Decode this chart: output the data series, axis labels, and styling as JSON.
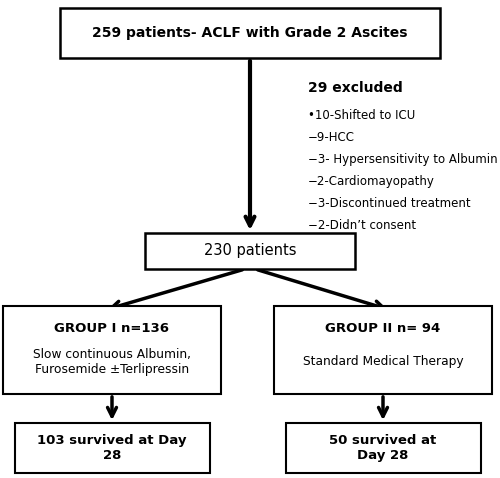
{
  "title": "259 patients- ACLF with Grade 2 Ascites",
  "excluded_title": "29 excluded",
  "excluded_items": [
    "•10-Shifted to ICU",
    "−9-HCC",
    "−3- Hypersensitivity to Albumin",
    "−2-Cardiomayopathy",
    "−3-Discontinued treatment",
    "−2-Didn’t consent"
  ],
  "box2_text": "230 patients",
  "group1_line1": "GROUP I n=136",
  "group1_line2": "Slow continuous Albumin,\nFurosemide ±Terlipressin",
  "group2_line1": "GROUP II n= 94",
  "group2_line2": "Standard Medical Therapy",
  "outcome1": "103 survived at Day\n28",
  "outcome2": "50 survived at\nDay 28",
  "box_facecolor": "#ffffff",
  "box_edgecolor": "#000000",
  "arrow_color": "#000000",
  "text_color": "#000000",
  "background_color": "#ffffff"
}
